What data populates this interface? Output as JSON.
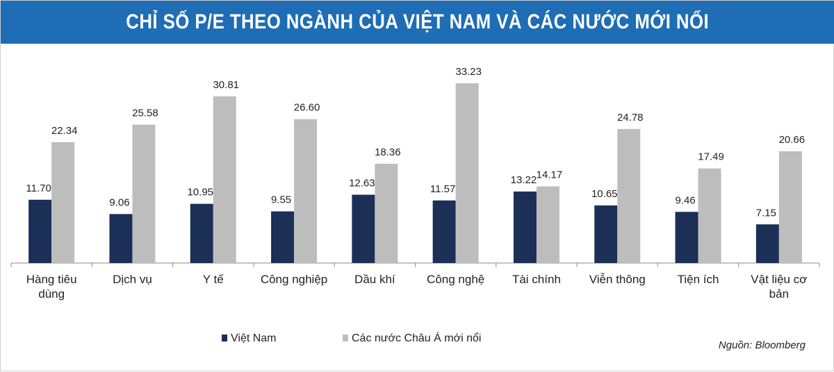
{
  "header": {
    "title": "CHỈ SỐ P/E THEO NGÀNH CỦA VIỆT NAM VÀ CÁC NƯỚC MỚI NỔI"
  },
  "source_note": "Nguồn: Bloomberg",
  "colors": {
    "title_bg": "#1e6db5",
    "vietnam": "#1b2f57",
    "asia": "#bdbdbd"
  },
  "chart_data": {
    "type": "bar",
    "categories": [
      [
        "Hàng tiêu",
        "dùng"
      ],
      [
        "Dịch vụ"
      ],
      [
        "Y tế"
      ],
      [
        "Công nghiệp"
      ],
      [
        "Dầu khí"
      ],
      [
        "Công nghệ"
      ],
      [
        "Tài chính"
      ],
      [
        "Viễn thông"
      ],
      [
        "Tiện ích"
      ],
      [
        "Vật liệu cơ",
        "bản"
      ]
    ],
    "series": [
      {
        "name": "Việt Nam",
        "color": "#1b2f57",
        "values": [
          11.7,
          9.06,
          10.95,
          9.55,
          12.63,
          11.57,
          13.22,
          10.65,
          9.46,
          7.15
        ],
        "labels": [
          "11.70",
          "9.06",
          "10.95",
          "9.55",
          "12.63",
          "11.57",
          "13.22",
          "10.65",
          "9.46",
          "7.15"
        ]
      },
      {
        "name": "Các nước Châu Á mới nổi",
        "color": "#bdbdbd",
        "values": [
          22.34,
          25.58,
          30.81,
          26.6,
          18.36,
          33.23,
          14.17,
          24.78,
          17.49,
          20.66
        ],
        "labels": [
          "22.34",
          "25.58",
          "30.81",
          "26.60",
          "18.36",
          "33.23",
          "14.17",
          "24.78",
          "17.49",
          "20.66"
        ]
      }
    ],
    "ylim": [
      0,
      35
    ],
    "grid": false,
    "legend": "bottom-left",
    "data_labels": true
  }
}
